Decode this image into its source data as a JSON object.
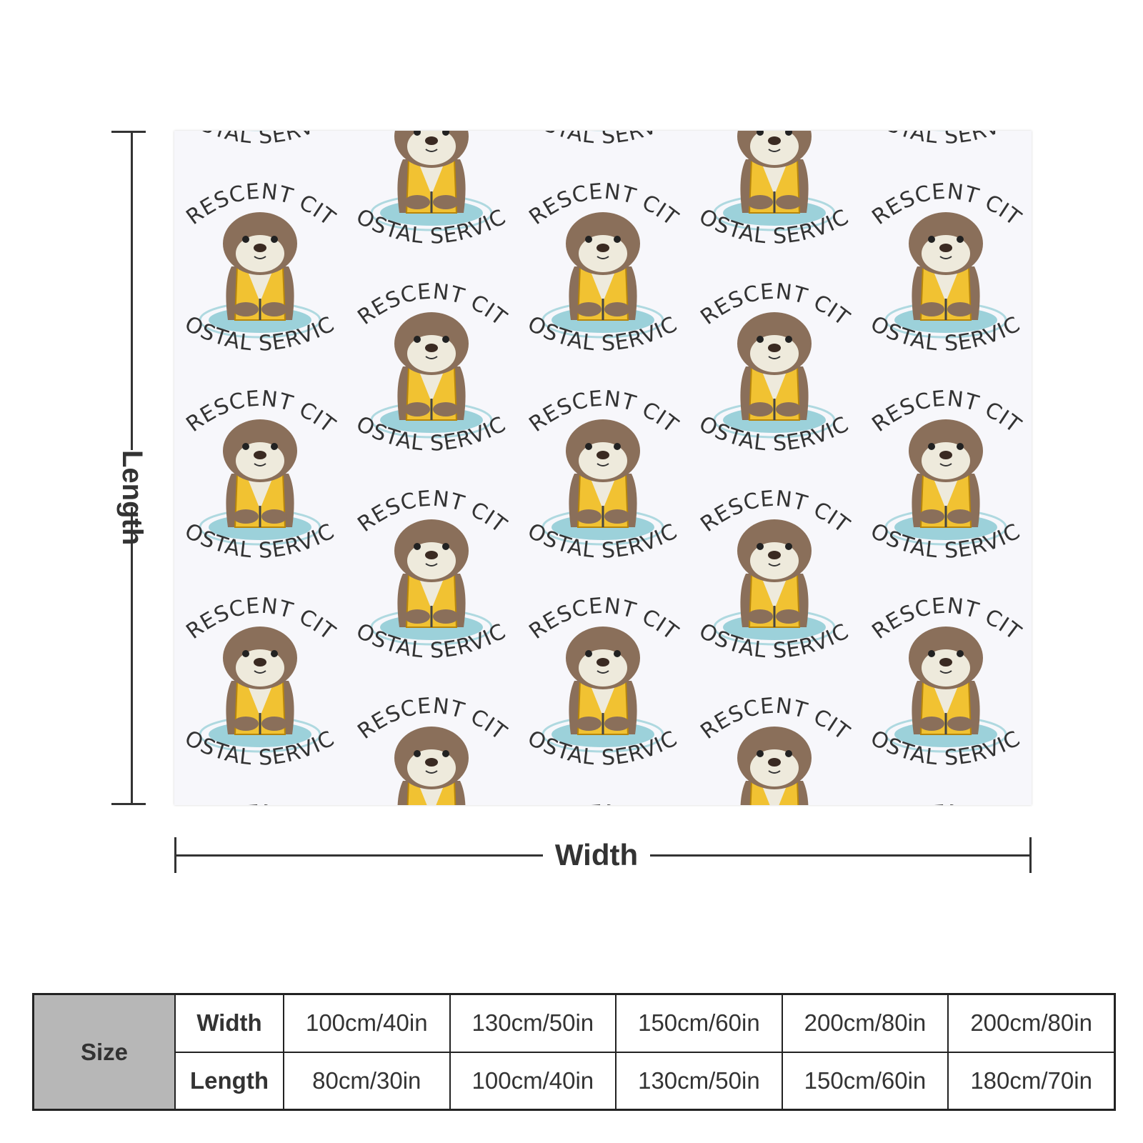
{
  "product": {
    "pattern_text": {
      "top": "CRESCENT CITY",
      "bottom": "POSTAL SERVICE"
    },
    "colors": {
      "vest": "#f1c232",
      "fur": "#8a6f5a",
      "belly": "#eeeadc",
      "water": "#7ec4cf",
      "text": "#333333"
    }
  },
  "dimensions": {
    "length_label": "Length",
    "width_label": "Width"
  },
  "size_table": {
    "title": "Size",
    "width_label": "Width",
    "length_label": "Length",
    "widths": [
      "100cm/40in",
      "130cm/50in",
      "150cm/60in",
      "200cm/80in",
      "200cm/80in"
    ],
    "lengths": [
      "80cm/30in",
      "100cm/40in",
      "130cm/50in",
      "150cm/60in",
      "180cm/70in"
    ]
  }
}
